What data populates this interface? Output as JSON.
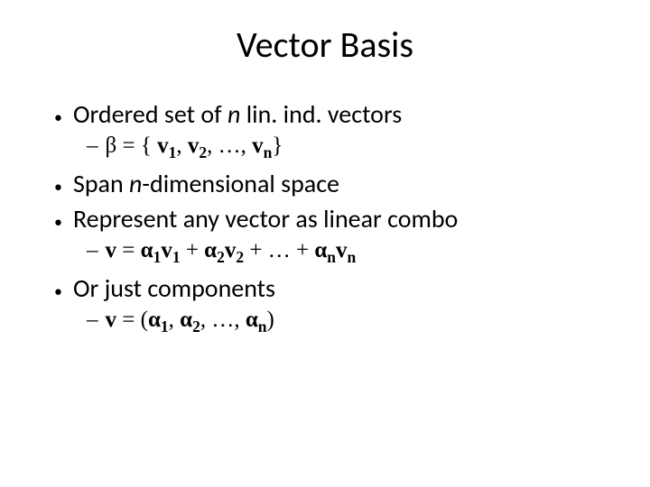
{
  "title": "Vector Basis",
  "bullets": {
    "b1": {
      "pre": "Ordered set of ",
      "n": "n",
      "post": " lin. ind. vectors"
    },
    "b1sub": {
      "beta": "β",
      "eq": " = { ",
      "v": "v",
      "s1": "1",
      "c1": ", ",
      "s2": "2",
      "c2": ", …, ",
      "sn": "n",
      "close": "}"
    },
    "b2": {
      "pre": "Span ",
      "n": "n",
      "post": "-dimensional space"
    },
    "b3": "Represent any vector as linear combo",
    "b3sub": {
      "v": "v",
      "eq": " = ",
      "a": "α",
      "s1": "1",
      "s2": "2",
      "sn": "n",
      "plus": " + ",
      "plusdots": " + … + "
    },
    "b4": "Or just components",
    "b4sub": {
      "v": "v",
      "eq": " = (",
      "a": "α",
      "s1": "1",
      "c1": ", ",
      "s2": "2",
      "c2": ", …, ",
      "sn": "n",
      "close": ")"
    }
  },
  "style": {
    "background_color": "#ffffff",
    "text_color": "#000000",
    "title_fontsize": 40,
    "l1_fontsize": 28,
    "l2_fontsize": 25
  }
}
